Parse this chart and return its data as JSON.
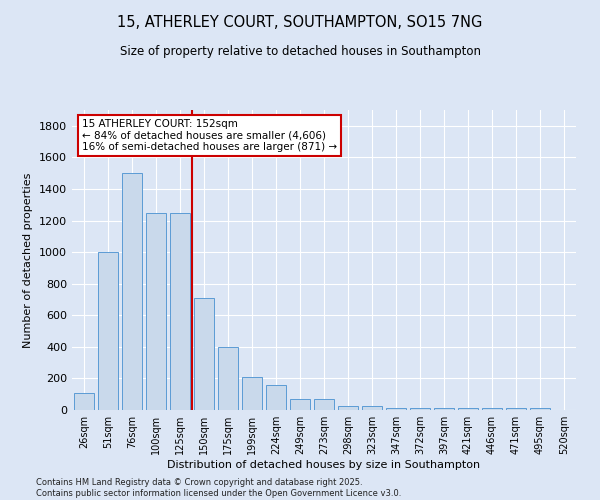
{
  "title": "15, ATHERLEY COURT, SOUTHAMPTON, SO15 7NG",
  "subtitle": "Size of property relative to detached houses in Southampton",
  "xlabel": "Distribution of detached houses by size in Southampton",
  "ylabel": "Number of detached properties",
  "categories": [
    "26sqm",
    "51sqm",
    "76sqm",
    "100sqm",
    "125sqm",
    "150sqm",
    "175sqm",
    "199sqm",
    "224sqm",
    "249sqm",
    "273sqm",
    "298sqm",
    "323sqm",
    "347sqm",
    "372sqm",
    "397sqm",
    "421sqm",
    "446sqm",
    "471sqm",
    "495sqm",
    "520sqm"
  ],
  "values": [
    105,
    1000,
    1500,
    1250,
    1250,
    710,
    400,
    210,
    160,
    70,
    70,
    25,
    25,
    15,
    15,
    10,
    10,
    10,
    10,
    10,
    0
  ],
  "bar_color": "#c9d9eb",
  "bar_edge_color": "#5b9bd5",
  "vline_color": "#cc0000",
  "vline_pos": 4.5,
  "annotation_text": "15 ATHERLEY COURT: 152sqm\n← 84% of detached houses are smaller (4,606)\n16% of semi-detached houses are larger (871) →",
  "annotation_box_edgecolor": "#cc0000",
  "background_color": "#dce6f5",
  "grid_color": "#ffffff",
  "footer": "Contains HM Land Registry data © Crown copyright and database right 2025.\nContains public sector information licensed under the Open Government Licence v3.0.",
  "ylim": [
    0,
    1900
  ],
  "yticks": [
    0,
    200,
    400,
    600,
    800,
    1000,
    1200,
    1400,
    1600,
    1800
  ]
}
